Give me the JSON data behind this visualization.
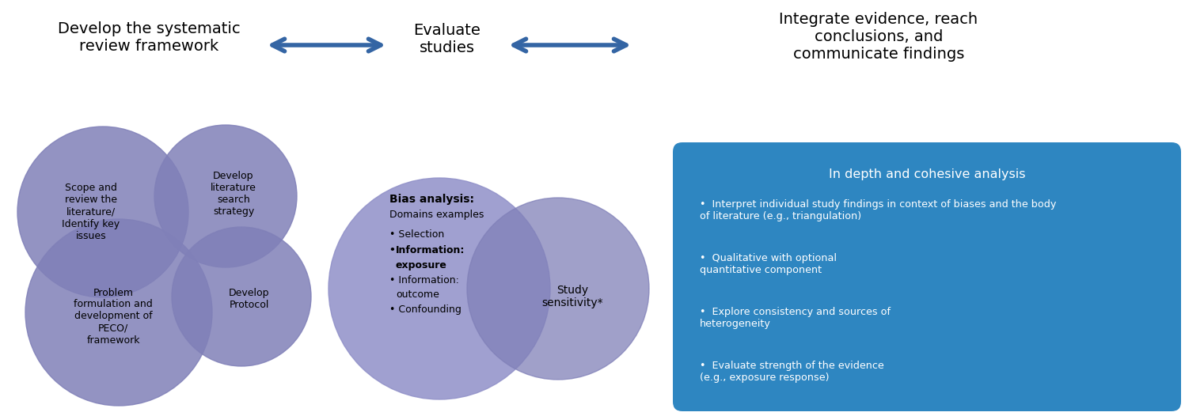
{
  "bg_color": "#ffffff",
  "arrow_color": "#3465a4",
  "circle_color": "#8080b8",
  "circle_color2": "#9090c8",
  "box_color": "#2E86C1",
  "title1": "Develop the systematic\nreview framework",
  "title2": "Evaluate\nstudies",
  "title3": "Integrate evidence, reach\nconclusions, and\ncommunicate findings",
  "circle1_text": "Scope and\nreview the\nliterature/\nIdentify key\nissues",
  "circle2_text": "Develop\nliterature\nsearch\nstrategy",
  "circle3_text": "Problem\nformulation and\ndevelopment of\nPECO/\nframework",
  "circle4_text": "Develop\nProtocol",
  "sensitivity_text": "Study\nsensitivity*",
  "box_title": "In depth and cohesive analysis",
  "box_bullets": [
    "Interpret individual study findings in context of biases and the body\nof literature (e.g., triangulation)",
    "Qualitative with optional\nquantitative component",
    "Explore consistency and sources of\nheterogeneity",
    "Evaluate strength of the evidence\n(e.g., exposure response)"
  ]
}
